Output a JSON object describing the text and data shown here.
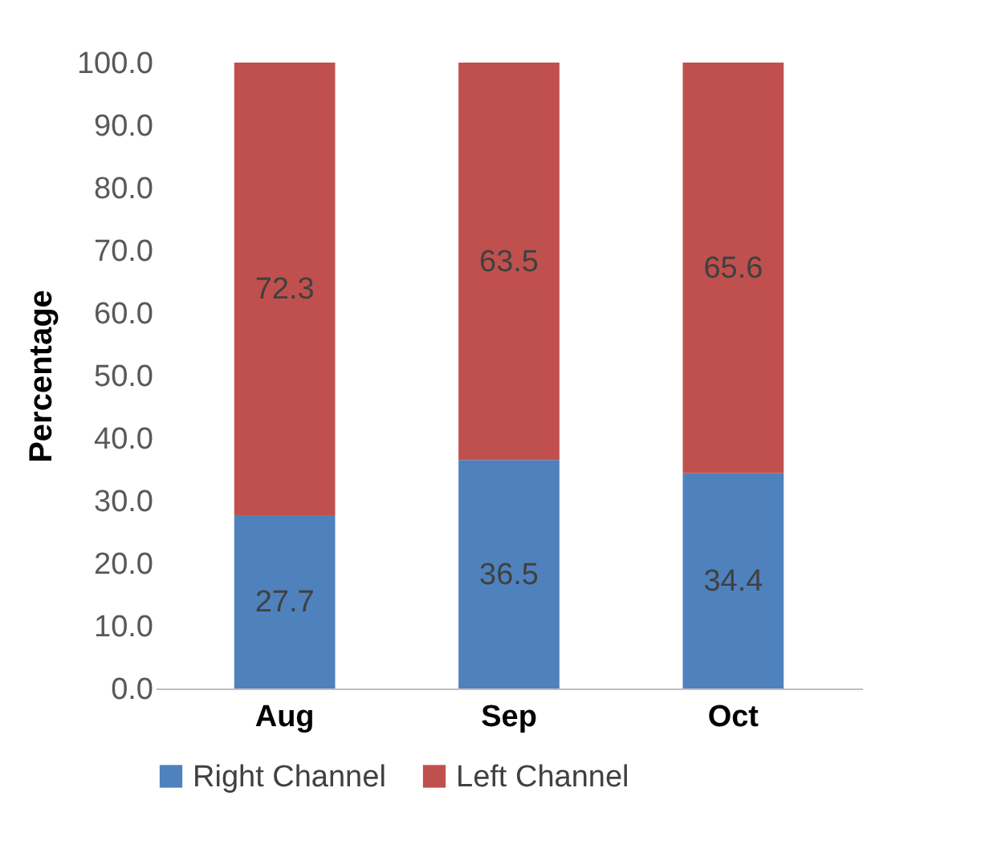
{
  "chart_data": {
    "type": "bar",
    "stacked": true,
    "ylabel": "Percentage",
    "categories": [
      "Aug",
      "Sep",
      "Oct"
    ],
    "series": [
      {
        "name": "Right Channel",
        "color": "#4f81bd",
        "values": [
          27.7,
          36.5,
          34.4
        ]
      },
      {
        "name": "Left Channel",
        "color": "#c0504d",
        "values": [
          72.3,
          63.5,
          65.6
        ]
      }
    ],
    "ylim": [
      0,
      100
    ],
    "yticks": [
      {
        "value": 0,
        "label": "0.0"
      },
      {
        "value": 10,
        "label": "10.0"
      },
      {
        "value": 20,
        "label": "20.0"
      },
      {
        "value": 30,
        "label": "30.0"
      },
      {
        "value": 40,
        "label": "40.0"
      },
      {
        "value": 50,
        "label": "50.0"
      },
      {
        "value": 60,
        "label": "60.0"
      },
      {
        "value": 70,
        "label": "70.0"
      },
      {
        "value": 80,
        "label": "80.0"
      },
      {
        "value": 90,
        "label": "90.0"
      },
      {
        "value": 100,
        "label": "100.0"
      }
    ],
    "data_labels": true,
    "grid": false,
    "legend": "bottom"
  }
}
